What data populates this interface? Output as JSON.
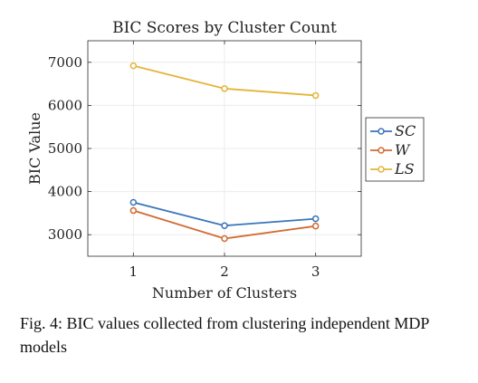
{
  "chart_data": {
    "type": "line",
    "title": "BIC Scores by Cluster Count",
    "xlabel": "Number of Clusters",
    "ylabel": "BIC Value",
    "x": [
      1,
      2,
      3
    ],
    "xticks": [
      "1",
      "2",
      "3"
    ],
    "xlim": [
      0.5,
      3.5
    ],
    "ylim": [
      2500,
      7500
    ],
    "yticks": [
      3000,
      4000,
      5000,
      6000,
      7000
    ],
    "grid": true,
    "legend_position": "right",
    "series": [
      {
        "name": "SC",
        "color": "#3a75b8",
        "values": [
          3750,
          3210,
          3370
        ]
      },
      {
        "name": "W",
        "color": "#d26a31",
        "values": [
          3560,
          2910,
          3200
        ]
      },
      {
        "name": "LS",
        "color": "#e4b43a",
        "values": [
          6920,
          6390,
          6230
        ]
      }
    ]
  },
  "caption": "Fig. 4: BIC values collected from clustering independent MDP models"
}
